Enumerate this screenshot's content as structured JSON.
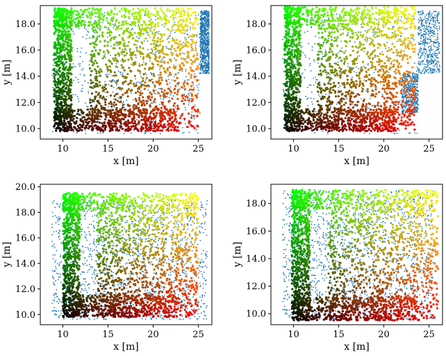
{
  "chart_data": [
    {
      "type": "scatter",
      "xlabel": "x [m]",
      "ylabel": "y [m]",
      "xlim": [
        7.5,
        26.5
      ],
      "ylim": [
        9.2,
        19.4
      ],
      "xticks": [
        "10",
        "15",
        "20",
        "25"
      ],
      "yticks": [
        "10.0",
        "12.0",
        "14.0",
        "16.0",
        "18.0"
      ],
      "ytick_values": [
        10,
        12,
        14,
        16,
        18
      ],
      "series": [
        {
          "role": "reference-grid",
          "color": "#1f77b4",
          "regions": [
            {
              "x": [
                8.8,
                25.2
              ],
              "y": [
                9.6,
                19.0
              ]
            },
            {
              "x": [
                25.2,
                26.2
              ],
              "y": [
                14.2,
                19.0
              ]
            }
          ],
          "count": 1500
        },
        {
          "role": "colored-estimate",
          "colormap": "green-yellow-red-black",
          "extent": {
            "x": [
              9.0,
              25.0
            ],
            "y": [
              9.8,
              19.2
            ]
          },
          "count": 2400
        }
      ]
    },
    {
      "type": "scatter",
      "xlabel": "x [m]",
      "ylabel": "y [m]",
      "xlim": [
        7.5,
        26.5
      ],
      "ylim": [
        9.2,
        19.4
      ],
      "xticks": [
        "10",
        "15",
        "20",
        "25"
      ],
      "yticks": [
        "10.0",
        "12.0",
        "14.0",
        "16.0",
        "18.0"
      ],
      "ytick_values": [
        10,
        12,
        14,
        16,
        18
      ],
      "series": [
        {
          "role": "reference-grid",
          "color": "#1f77b4",
          "regions": [
            {
              "x": [
                8.8,
                23.8
              ],
              "y": [
                9.6,
                19.0
              ]
            },
            {
              "x": [
                23.8,
                26.2
              ],
              "y": [
                14.2,
                19.0
              ]
            },
            {
              "x": [
                22.0,
                23.8
              ],
              "y": [
                11.2,
                14.2
              ]
            }
          ],
          "count": 1500
        },
        {
          "role": "colored-estimate",
          "colormap": "green-yellow-red-black",
          "extent": {
            "x": [
              9.0,
              23.5
            ],
            "y": [
              9.8,
              19.3
            ]
          },
          "count": 2400
        }
      ]
    },
    {
      "type": "scatter",
      "xlabel": "x [m]",
      "ylabel": "y [m]",
      "xlim": [
        7.5,
        26.5
      ],
      "ylim": [
        9.2,
        20.2
      ],
      "xticks": [
        "10",
        "15",
        "20",
        "25"
      ],
      "yticks": [
        "10.0",
        "12.0",
        "14.0",
        "16.0",
        "18.0",
        "20.0"
      ],
      "ytick_values": [
        10,
        12,
        14,
        16,
        18,
        20
      ],
      "series": [
        {
          "role": "reference-grid",
          "color": "#1f77b4",
          "regions": [
            {
              "x": [
                8.8,
                26.0
              ],
              "y": [
                9.6,
                19.0
              ]
            }
          ],
          "count": 1500
        },
        {
          "role": "colored-estimate",
          "colormap": "green-yellow-red-black",
          "extent": {
            "x": [
              10.0,
              25.0
            ],
            "y": [
              9.8,
              19.5
            ]
          },
          "count": 2400
        }
      ]
    },
    {
      "type": "scatter",
      "xlabel": "x [m]",
      "ylabel": "y [m]",
      "xlim": [
        7.5,
        26.5
      ],
      "ylim": [
        9.2,
        19.4
      ],
      "xticks": [
        "10",
        "15",
        "20",
        "25"
      ],
      "yticks": [
        "10.0",
        "12.0",
        "14.0",
        "16.0",
        "18.0"
      ],
      "ytick_values": [
        10,
        12,
        14,
        16,
        18
      ],
      "series": [
        {
          "role": "reference-grid",
          "color": "#1f77b4",
          "regions": [
            {
              "x": [
                8.8,
                25.5
              ],
              "y": [
                9.6,
                19.0
              ]
            }
          ],
          "count": 1500
        },
        {
          "role": "colored-estimate",
          "colormap": "green-yellow-red-black",
          "extent": {
            "x": [
              9.8,
              26.0
            ],
            "y": [
              9.5,
              19.0
            ]
          },
          "count": 2400
        }
      ]
    }
  ]
}
